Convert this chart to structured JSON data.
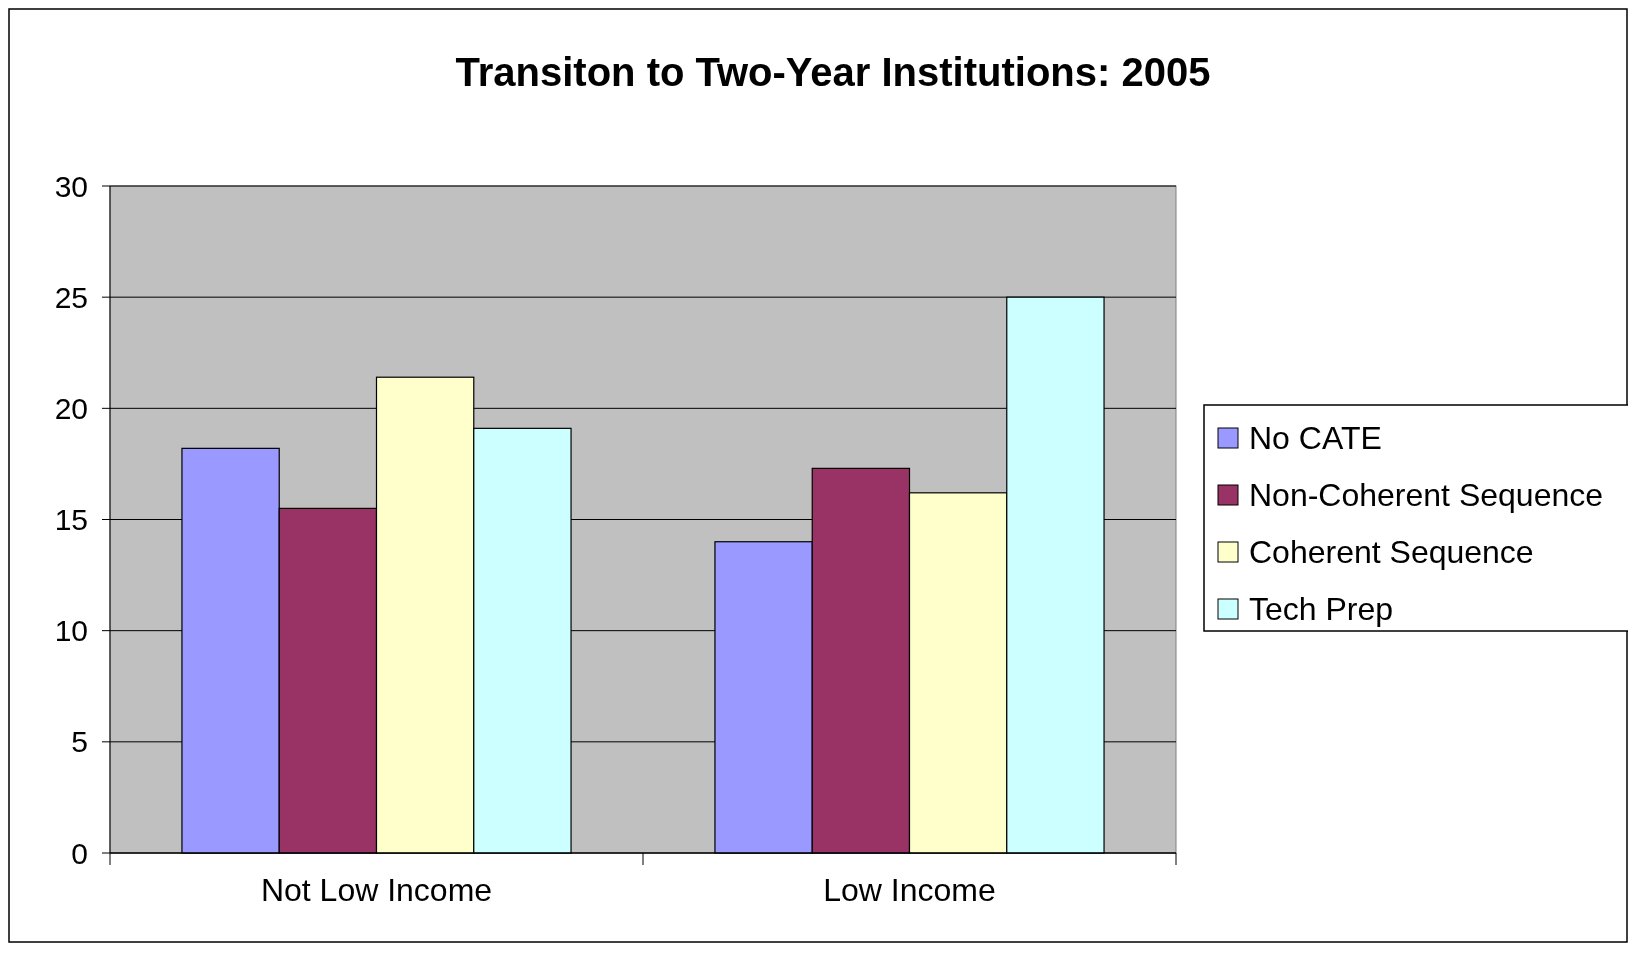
{
  "chart_data": {
    "type": "bar",
    "title": "Transiton to Two-Year Institutions: 2005",
    "categories": [
      "Not Low Income",
      "Low Income"
    ],
    "series": [
      {
        "name": "No CATE",
        "color": "#9999ff",
        "values": [
          18.2,
          14.0
        ]
      },
      {
        "name": "Non-Coherent Sequence",
        "color": "#993366",
        "values": [
          15.5,
          17.3
        ]
      },
      {
        "name": "Coherent Sequence",
        "color": "#ffffcc",
        "values": [
          21.4,
          16.2
        ]
      },
      {
        "name": "Tech Prep",
        "color": "#ccffff",
        "values": [
          19.1,
          25.0
        ]
      }
    ],
    "ylim": [
      0,
      30
    ],
    "yticks": [
      0,
      5,
      10,
      15,
      20,
      25,
      30
    ],
    "grid": "y",
    "legend": "right"
  }
}
